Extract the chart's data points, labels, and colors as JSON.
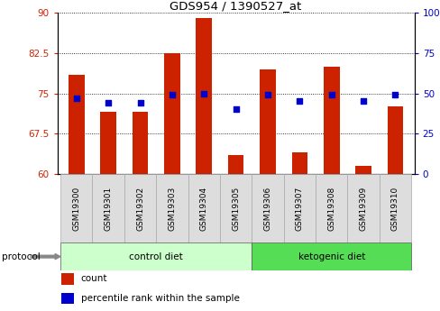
{
  "title": "GDS954 / 1390527_at",
  "samples": [
    "GSM19300",
    "GSM19301",
    "GSM19302",
    "GSM19303",
    "GSM19304",
    "GSM19305",
    "GSM19306",
    "GSM19307",
    "GSM19308",
    "GSM19309",
    "GSM19310"
  ],
  "counts": [
    78.5,
    71.5,
    71.5,
    82.5,
    89.0,
    63.5,
    79.5,
    64.0,
    80.0,
    61.5,
    72.5
  ],
  "percentiles": [
    47,
    44,
    44,
    49,
    50,
    40,
    49,
    45,
    49,
    45,
    49
  ],
  "ylim_left": [
    60,
    90
  ],
  "ylim_right": [
    0,
    100
  ],
  "yticks_left": [
    60,
    67.5,
    75,
    82.5,
    90
  ],
  "ytick_labels_left": [
    "60",
    "67.5",
    "75",
    "82.5",
    "90"
  ],
  "yticks_right": [
    0,
    25,
    50,
    75,
    100
  ],
  "ytick_labels_right": [
    "0",
    "25",
    "50",
    "75",
    "100%"
  ],
  "bar_color": "#cc2200",
  "dot_color": "#0000cc",
  "bar_width": 0.5,
  "groups": [
    {
      "label": "control diet",
      "start": 0,
      "end": 5,
      "color": "#ccffcc"
    },
    {
      "label": "ketogenic diet",
      "start": 6,
      "end": 10,
      "color": "#55dd55"
    }
  ],
  "group_label": "protocol",
  "legend_bar_label": "count",
  "legend_dot_label": "percentile rank within the sample",
  "dot_size": 20,
  "tick_bg_color": "#dddddd"
}
